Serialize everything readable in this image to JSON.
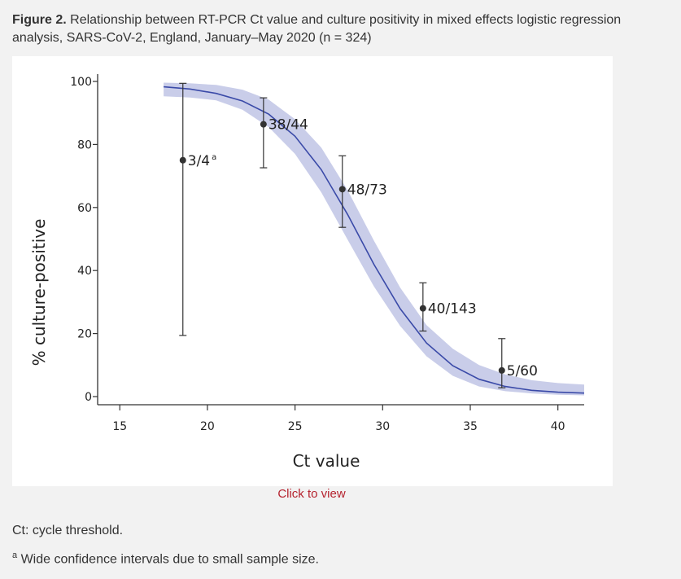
{
  "caption": {
    "label": "Figure 2.",
    "text": "Relationship between RT-PCR Ct value and culture positivity in mixed effects logistic regression analysis, SARS-CoV-2, England, January–May 2020 (n = 324)"
  },
  "link": {
    "label": "Click to view"
  },
  "footnotes": {
    "ct": "Ct: cycle threshold.",
    "a_marker": "a",
    "a_text": "Wide confidence intervals due to small sample size."
  },
  "chart_data": {
    "type": "scatter",
    "xlabel": "Ct value",
    "ylabel": "% culture-positive",
    "xlim": [
      14.2,
      41.5
    ],
    "ylim": [
      0,
      100
    ],
    "x_ticks": [
      15,
      20,
      25,
      30,
      35,
      40
    ],
    "y_ticks": [
      0,
      20,
      40,
      60,
      80,
      100
    ],
    "grid": false,
    "points": [
      {
        "x": 18.6,
        "y": 75,
        "lower": 19.4,
        "upper": 99.4,
        "label": "3/4",
        "note": "a"
      },
      {
        "x": 23.2,
        "y": 86.4,
        "lower": 72.6,
        "upper": 94.8,
        "label": "38/44"
      },
      {
        "x": 27.7,
        "y": 65.8,
        "lower": 53.7,
        "upper": 76.4,
        "label": "48/73"
      },
      {
        "x": 32.3,
        "y": 28,
        "lower": 20.8,
        "upper": 36.1,
        "label": "40/143"
      },
      {
        "x": 36.8,
        "y": 8.3,
        "lower": 2.8,
        "upper": 18.4,
        "label": "5/60"
      }
    ],
    "fit": {
      "x": [
        17.5,
        19,
        20.5,
        22,
        23.5,
        25,
        26.5,
        28,
        29.5,
        31,
        32.5,
        34,
        35.5,
        37,
        38.5,
        40,
        41.5
      ],
      "y": [
        98.3,
        97.6,
        96.2,
        93.8,
        89.6,
        82.6,
        72.0,
        57.8,
        42.0,
        27.9,
        17.0,
        9.8,
        5.5,
        3.2,
        2.0,
        1.4,
        1.1
      ],
      "lower": [
        95.3,
        94.9,
        94.0,
        91.0,
        85.5,
        77.0,
        64.8,
        49.8,
        35.0,
        22.4,
        12.8,
        6.6,
        3.2,
        1.7,
        1.0,
        0.6,
        0.4
      ],
      "upper": [
        99.6,
        99.4,
        98.9,
        97.4,
        94.2,
        88.0,
        79.0,
        65.5,
        49.5,
        34.6,
        22.7,
        15.2,
        10.0,
        7.0,
        5.2,
        4.3,
        3.8
      ]
    },
    "colors": {
      "line": "#3a4aa8",
      "band": "#c9cde9",
      "point": "#333333",
      "axis": "#333333"
    }
  }
}
